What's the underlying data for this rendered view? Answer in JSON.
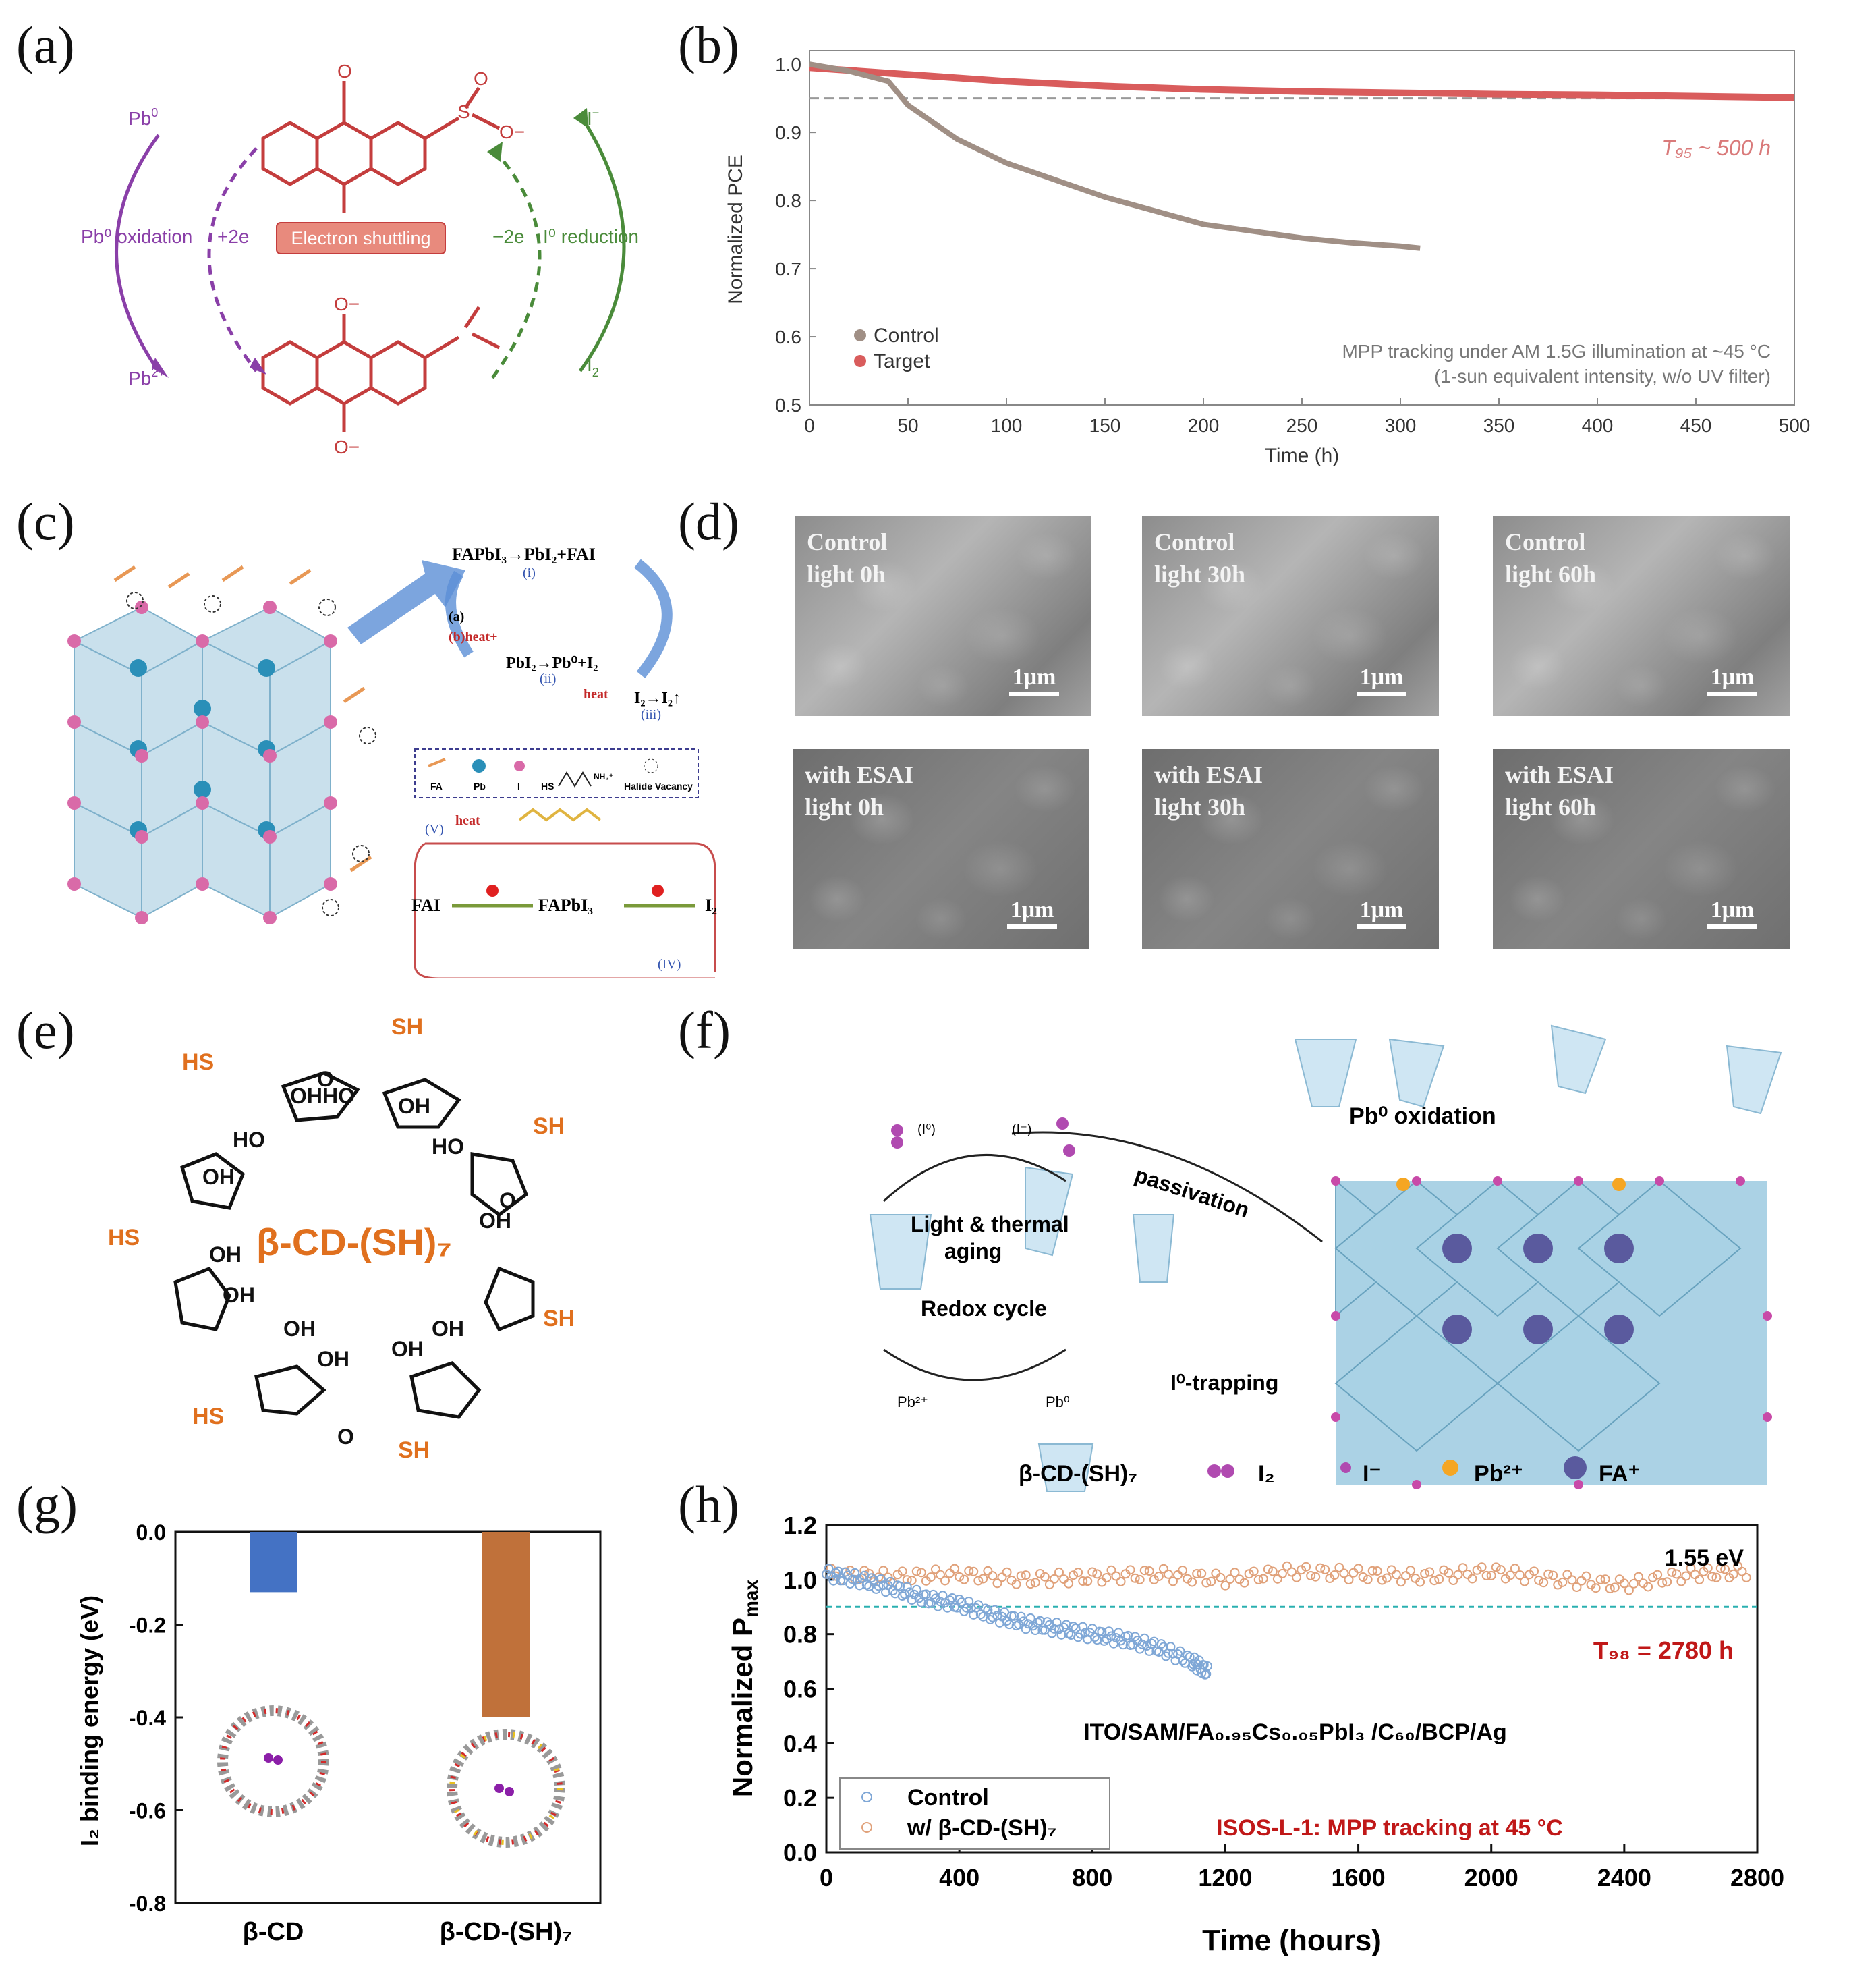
{
  "panels": {
    "a": "(a)",
    "b": "(b)",
    "c": "(c)",
    "d": "(d)",
    "e": "(e)",
    "f": "(f)",
    "g": "(g)",
    "h": "(h)"
  },
  "panel_a": {
    "pb0": "Pb",
    "pb0_sup": "0",
    "pb2": "Pb",
    "pb2_sup": "2+",
    "iminus": "I",
    "iminus_sup": "−",
    "i2": "I",
    "i2_sub": "2",
    "pb_oxidation": "Pb⁰ oxidation",
    "plus2e": "+2e",
    "minus2e": "−2e",
    "i_reduction": "I⁰ reduction",
    "electron_shuttling": "Electron shuttling",
    "o_top": "O",
    "o_bottom": "O",
    "o_minus_top": "O−",
    "o_minus_bottom": "O−",
    "s_label": "S",
    "so3_o": "O",
    "so3_ominus": "O−"
  },
  "panel_b": {
    "y_label": "Normalized PCE",
    "x_label": "Time (h)",
    "t95": "T₉₅ ~ 500 h",
    "legend_control": "Control",
    "legend_target": "Target",
    "note_line1": "MPP tracking under AM 1.5G illumination at ~45 °C",
    "note_line2": "(1-sun equivalent intensity, w/o UV filter)",
    "colors": {
      "control": "#a08f85",
      "target": "#d95c5c",
      "ref": "#999999"
    }
  },
  "panel_c": {
    "eq1": "FAPbI₃→PbI₂+FAI",
    "eq1_tag": "(i)",
    "eq2": "PbI₂→Pb⁰+I₂",
    "eq2_tag": "(ii)",
    "eq3": "I₂→I₂↑",
    "eq3_tag": "(iii)",
    "heat": "heat",
    "a_label": "(a)",
    "b_label": "(b)heat+",
    "legend_fa": "FA",
    "legend_pb": "Pb",
    "legend_i": "I",
    "legend_hs": "HS",
    "legend_nh3": "NH₃⁺",
    "legend_vac": "Halide Vacancy",
    "fai": "FAI",
    "fapbi3": "FAPbI₃",
    "i2": "I₂",
    "v_tag": "(V)",
    "iv_tag": "(IV)",
    "heat2": "heat"
  },
  "panel_d": {
    "images": [
      {
        "line1": "Control",
        "line2": "light 0h",
        "scale": "1μm"
      },
      {
        "line1": "Control",
        "line2": "light 30h",
        "scale": "1μm"
      },
      {
        "line1": "Control",
        "line2": "light 60h",
        "scale": "1μm"
      },
      {
        "line1": "with ESAI",
        "line2": "light 0h",
        "scale": "1μm"
      },
      {
        "line1": "with ESAI",
        "line2": "light 30h",
        "scale": "1μm"
      },
      {
        "line1": "with ESAI",
        "line2": "light 60h",
        "scale": "1μm"
      }
    ]
  },
  "panel_e": {
    "center": "β-CD-(SH)₇",
    "sh": "SH",
    "hs": "HS",
    "oh": "OH",
    "ho": "HO",
    "o": "O",
    "ohho": "OHHO"
  },
  "panel_f": {
    "pb0_ox": "Pb⁰ oxidation",
    "passivation": "passivation",
    "light_thermal": "Light & thermal",
    "aging": "aging",
    "redox": "Redox cycle",
    "i0_trap": "I⁰-trapping",
    "i0": "(I⁰)",
    "iminus": "(I⁻)",
    "pb2": "Pb²⁺",
    "pb0": "Pb⁰",
    "legend_bcd": "β-CD-(SH)₇",
    "legend_i2": "I₂",
    "legend_iminus": "I⁻",
    "legend_pb2": "Pb²⁺",
    "legend_fa": "FA⁺"
  },
  "panel_g": {
    "y_label": "I₂ binding energy (eV)",
    "colors": {
      "bcd": "#4472c4",
      "bcdsh": "#c0713a"
    }
  },
  "panel_h": {
    "y_label": "Normalized P",
    "y_label_sub": "max",
    "x_label": "Time (hours)",
    "bandgap": "1.55 eV",
    "t98": "T₉₈ = 2780 h",
    "stack": "ITO/SAM/FA₀.₉₅Cs₀.₀₅PbI₃ /C₆₀/BCP/Ag",
    "legend_control": "Control",
    "legend_target": "w/ β-CD-(SH)₇",
    "isos": "ISOS-L-1: MPP tracking at 45 °C",
    "colors": {
      "control": "#7fa7d6",
      "target": "#e0a17a",
      "ref": "#2ab0b0",
      "red": "#c01818"
    }
  },
  "chart_data": [
    {
      "id": "b",
      "type": "line",
      "title": "",
      "xlabel": "Time (h)",
      "ylabel": "Normalized PCE",
      "xlim": [
        0,
        500
      ],
      "ylim": [
        0.5,
        1.02
      ],
      "xticks": [
        0,
        50,
        100,
        150,
        200,
        250,
        300,
        350,
        400,
        450,
        500
      ],
      "yticks": [
        0.5,
        0.6,
        0.7,
        0.8,
        0.9,
        1.0
      ],
      "reference_line": 0.95,
      "series": [
        {
          "name": "Control",
          "x": [
            0,
            20,
            40,
            50,
            75,
            100,
            125,
            150,
            175,
            200,
            225,
            250,
            275,
            300,
            310
          ],
          "y": [
            1.0,
            0.99,
            0.975,
            0.94,
            0.89,
            0.855,
            0.83,
            0.805,
            0.785,
            0.765,
            0.755,
            0.745,
            0.738,
            0.733,
            0.73
          ]
        },
        {
          "name": "Target",
          "x": [
            0,
            50,
            100,
            150,
            200,
            250,
            300,
            350,
            400,
            450,
            500
          ],
          "y": [
            0.995,
            0.985,
            0.975,
            0.968,
            0.963,
            0.96,
            0.958,
            0.956,
            0.955,
            0.953,
            0.951
          ]
        }
      ]
    },
    {
      "id": "g",
      "type": "bar",
      "categories": [
        "β-CD",
        "β-CD-(SH)₇"
      ],
      "values": [
        -0.13,
        -0.4
      ],
      "ylabel": "I₂ binding energy (eV)",
      "ylim": [
        -0.8,
        0.0
      ],
      "yticks": [
        0.0,
        -0.2,
        -0.4,
        -0.6,
        -0.8
      ]
    },
    {
      "id": "h",
      "type": "scatter",
      "xlabel": "Time (hours)",
      "ylabel": "Normalized Pmax",
      "xlim": [
        0,
        2800
      ],
      "ylim": [
        0.0,
        1.2
      ],
      "xticks": [
        0,
        400,
        800,
        1200,
        1600,
        2000,
        2400,
        2800
      ],
      "yticks": [
        0.0,
        0.2,
        0.4,
        0.6,
        0.8,
        1.0,
        1.2
      ],
      "reference_line": 0.9,
      "series": [
        {
          "name": "Control",
          "x": [
            0,
            100,
            200,
            300,
            400,
            500,
            600,
            700,
            800,
            900,
            1000,
            1100,
            1150
          ],
          "y": [
            1.02,
            1.0,
            0.97,
            0.93,
            0.91,
            0.87,
            0.84,
            0.82,
            0.8,
            0.78,
            0.75,
            0.7,
            0.66
          ]
        },
        {
          "name": "w/ β-CD-(SH)₇",
          "x": [
            0,
            200,
            400,
            600,
            800,
            1000,
            1200,
            1400,
            1600,
            1800,
            2000,
            2200,
            2400,
            2600,
            2780
          ],
          "y": [
            1.02,
            1.01,
            1.02,
            1.0,
            1.01,
            1.02,
            1.0,
            1.03,
            1.02,
            1.01,
            1.03,
            1.0,
            0.98,
            1.02,
            1.03
          ]
        }
      ]
    }
  ]
}
